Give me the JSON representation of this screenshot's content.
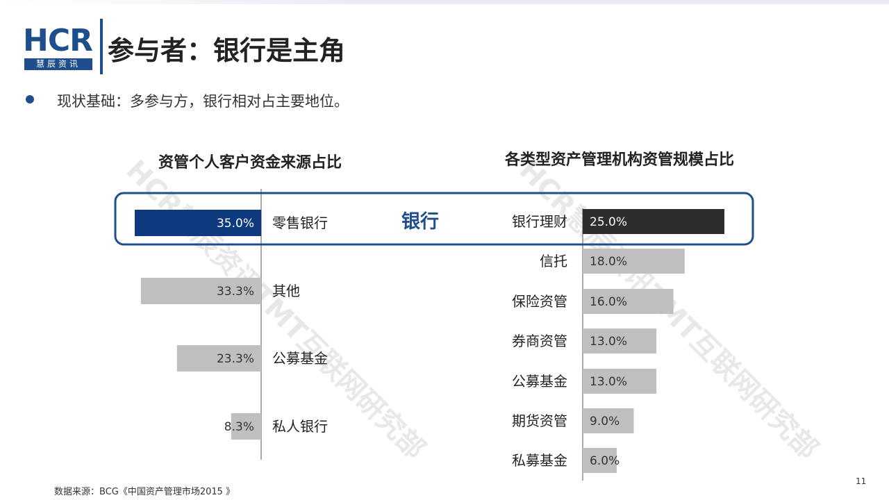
{
  "header": {
    "logo_text": "HCR",
    "logo_sub": "慧辰资讯",
    "title": "参与者：银行是主角"
  },
  "bullet": "现状基础：多参与方，银行相对占主要地位。",
  "highlight_label": "银行",
  "footer": "数据来源：BCG《中国资产管理市场2015 》",
  "page_number": "11",
  "watermark": "HCR慧辰资讯TMT互联网研究部",
  "colors": {
    "brand": "#1f4e8c",
    "highlight_bar_left": "#0d3a7e",
    "highlight_bar_right": "#2d2d2d",
    "bar_gray": "#bfbfbf",
    "highlight_box": "#1f4e8c"
  },
  "chart_data": [
    {
      "type": "bar",
      "orientation": "horizontal",
      "title": "资管个人客户资金来源占比",
      "categories": [
        "零售银行",
        "其他",
        "公募基金",
        "私人银行"
      ],
      "values": [
        35.0,
        33.3,
        23.3,
        8.3
      ],
      "labels": [
        "35.0%",
        "33.3%",
        "23.3%",
        "8.3%"
      ],
      "highlight": "零售银行",
      "direction": "leftward"
    },
    {
      "type": "bar",
      "orientation": "horizontal",
      "title": "各类型资产管理机构资管规模占比",
      "categories": [
        "银行理财",
        "信托",
        "保险资管",
        "券商资管",
        "公募基金",
        "期货资管",
        "私募基金"
      ],
      "values": [
        25.0,
        18.0,
        16.0,
        13.0,
        13.0,
        9.0,
        6.0
      ],
      "labels": [
        "25.0%",
        "18.0%",
        "16.0%",
        "13.0%",
        "13.0%",
        "9.0%",
        "6.0%"
      ],
      "highlight": "银行理财",
      "direction": "rightward"
    }
  ]
}
